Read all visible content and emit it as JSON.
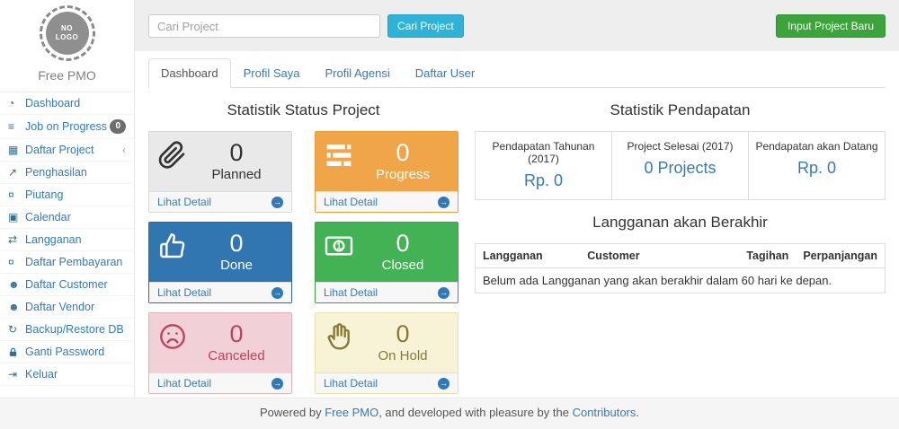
{
  "brand": {
    "logo_text": "NO LOGO",
    "name": "Free PMO"
  },
  "sidebar": {
    "items": [
      {
        "icon": "gauge-icon",
        "label": "Dashboard"
      },
      {
        "icon": "list-icon",
        "label": "Job on Progress",
        "badge": "0"
      },
      {
        "icon": "table-icon",
        "label": "Daftar Project",
        "chevron": "‹"
      },
      {
        "icon": "line-chart-icon",
        "label": "Penghasilan"
      },
      {
        "icon": "money-icon",
        "label": "Piutang"
      },
      {
        "icon": "calendar-icon",
        "label": "Calendar"
      },
      {
        "icon": "retweet-icon",
        "label": "Langganan"
      },
      {
        "icon": "money-icon",
        "label": "Daftar Pembayaran"
      },
      {
        "icon": "users-icon",
        "label": "Daftar Customer"
      },
      {
        "icon": "users-icon",
        "label": "Daftar Vendor"
      },
      {
        "icon": "refresh-icon",
        "label": "Backup/Restore DB"
      },
      {
        "icon": "lock-icon",
        "label": "Ganti Password"
      },
      {
        "icon": "sign-out-icon",
        "label": "Keluar"
      }
    ]
  },
  "topbar": {
    "search_placeholder": "Cari Project",
    "search_button": "Cari Project",
    "new_project_button": "Input Project Baru"
  },
  "tabs": [
    {
      "label": "Dashboard",
      "active": true
    },
    {
      "label": "Profil Saya",
      "active": false
    },
    {
      "label": "Profil Agensi",
      "active": false
    },
    {
      "label": "Daftar User",
      "active": false
    }
  ],
  "status_section": {
    "title": "Statistik Status Project",
    "link_label": "Lihat Detail",
    "cards": [
      {
        "label": "Planned",
        "count": "0",
        "icon": "paperclip-icon",
        "theme": "default"
      },
      {
        "label": "Progress",
        "count": "0",
        "icon": "tasks-icon",
        "theme": "warning"
      },
      {
        "label": "Done",
        "count": "0",
        "icon": "thumbs-up-icon",
        "theme": "primary"
      },
      {
        "label": "Closed",
        "count": "0",
        "icon": "banknote-icon",
        "theme": "success"
      },
      {
        "label": "Canceled",
        "count": "0",
        "icon": "frown-icon",
        "theme": "danger"
      },
      {
        "label": "On Hold",
        "count": "0",
        "icon": "hand-icon",
        "theme": "hold"
      }
    ]
  },
  "income_section": {
    "title": "Statistik Pendapatan",
    "stats": [
      {
        "label": "Pendapatan Tahunan (2017)",
        "value": "Rp. 0"
      },
      {
        "label": "Project Selesai (2017)",
        "value": "0 Projects"
      },
      {
        "label": "Pendapatan akan Datang",
        "value": "Rp. 0"
      }
    ]
  },
  "subscription_section": {
    "title": "Langganan akan Berakhir",
    "columns": [
      "Langganan",
      "Customer",
      "Tagihan",
      "Perpanjangan"
    ],
    "empty_message": "Belum ada Langganan yang akan berakhir dalam 60 hari ke depan."
  },
  "footer": {
    "prefix": "Powered by ",
    "link1": "Free PMO",
    "middle": ", and developed with pleasure by the ",
    "link2": "Contributors",
    "suffix": "."
  },
  "colors": {
    "accent_blue": "#337ab7",
    "search_button": "#2eb3d8",
    "new_project_button": "#3ba43b",
    "card_warning": "#f0a648",
    "card_primary": "#3276b1",
    "card_success": "#43b254",
    "card_danger_bg": "#f2d0d7",
    "card_danger_text": "#b9455b",
    "card_hold_bg": "#f8f2d6",
    "card_hold_text": "#867a36",
    "topbar_bg": "#eeeeee",
    "footer_bg": "#f5f5f5"
  }
}
